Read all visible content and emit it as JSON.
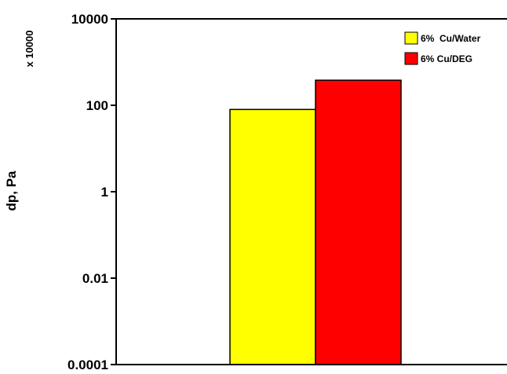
{
  "chart_data": {
    "type": "bar",
    "y_scale": "log",
    "ylabel": "dp, Pa",
    "y_multiplier": "x 10000",
    "ylim": [
      0.0001,
      10000
    ],
    "y_ticks": [
      {
        "value": 10000,
        "label": "10000"
      },
      {
        "value": 100,
        "label": "100"
      },
      {
        "value": 1,
        "label": "1"
      },
      {
        "value": 0.01,
        "label": "0.01"
      },
      {
        "value": 0.0001,
        "label": "0.0001"
      }
    ],
    "grid": false,
    "legend_position": "top-right",
    "series": [
      {
        "name": "6%  Cu/Water",
        "value": 80,
        "color": "#ffff00"
      },
      {
        "name": "6% Cu/DEG",
        "value": 380,
        "color": "#ff0000"
      }
    ]
  }
}
